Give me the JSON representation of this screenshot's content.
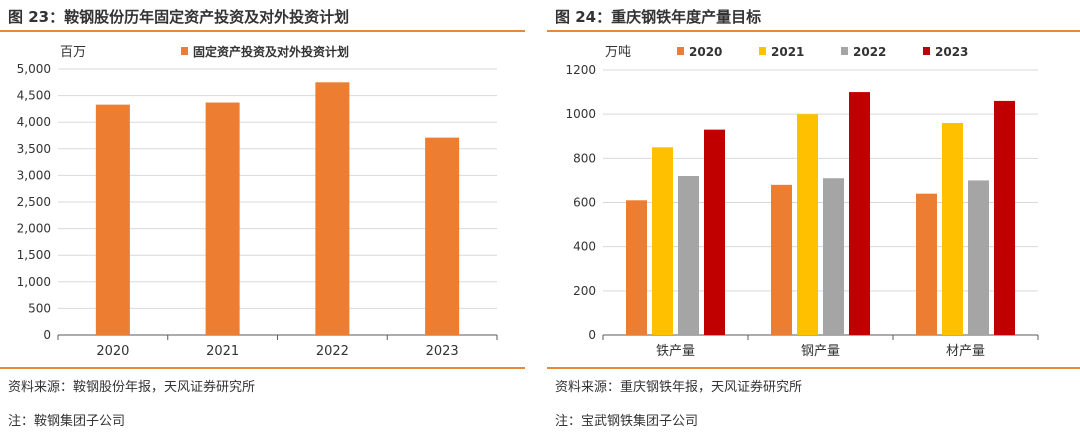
{
  "panels": [
    {
      "fig_title": "图 23：鞍钢股份历年固定资产投资及对外投资计划",
      "source": "资料来源：鞍钢股份年报，天风证券研究所",
      "remark": "注：鞍钢集团子公司"
    },
    {
      "fig_title": "图 24：重庆钢铁年度产量目标",
      "source": "资料来源：重庆钢铁年报，天风证券研究所",
      "remark": "注：宝武钢铁集团子公司"
    }
  ],
  "chart_data": [
    {
      "type": "bar",
      "unit_label": "百万",
      "categories": [
        "2020",
        "2021",
        "2022",
        "2023"
      ],
      "series": [
        {
          "name": "固定资产投资及对外投资计划",
          "color": "#ed7d31",
          "values": [
            4330,
            4370,
            4750,
            3710
          ]
        }
      ],
      "ylim": [
        0,
        5000
      ],
      "yticks": [
        0,
        500,
        1000,
        1500,
        2000,
        2500,
        3000,
        3500,
        4000,
        4500,
        5000
      ],
      "ytick_labels": [
        "0",
        "500",
        "1,000",
        "1,500",
        "2,000",
        "2,500",
        "3,000",
        "3,500",
        "4,000",
        "4,500",
        "5,000"
      ],
      "grid": true,
      "legend": "top"
    },
    {
      "type": "bar",
      "unit_label": "万吨",
      "categories": [
        "铁产量",
        "钢产量",
        "材产量"
      ],
      "series": [
        {
          "name": "2020",
          "color": "#ed7d31",
          "values": [
            610,
            680,
            640
          ]
        },
        {
          "name": "2021",
          "color": "#ffc000",
          "values": [
            850,
            1000,
            960
          ]
        },
        {
          "name": "2022",
          "color": "#a5a5a5",
          "values": [
            720,
            710,
            700
          ]
        },
        {
          "name": "2023",
          "color": "#c00000",
          "values": [
            930,
            1100,
            1060
          ]
        }
      ],
      "ylim": [
        0,
        1200
      ],
      "yticks": [
        0,
        200,
        400,
        600,
        800,
        1000,
        1200
      ],
      "ytick_labels": [
        "0",
        "200",
        "400",
        "600",
        "800",
        "1000",
        "1200"
      ],
      "grid": true,
      "legend": "top"
    }
  ]
}
